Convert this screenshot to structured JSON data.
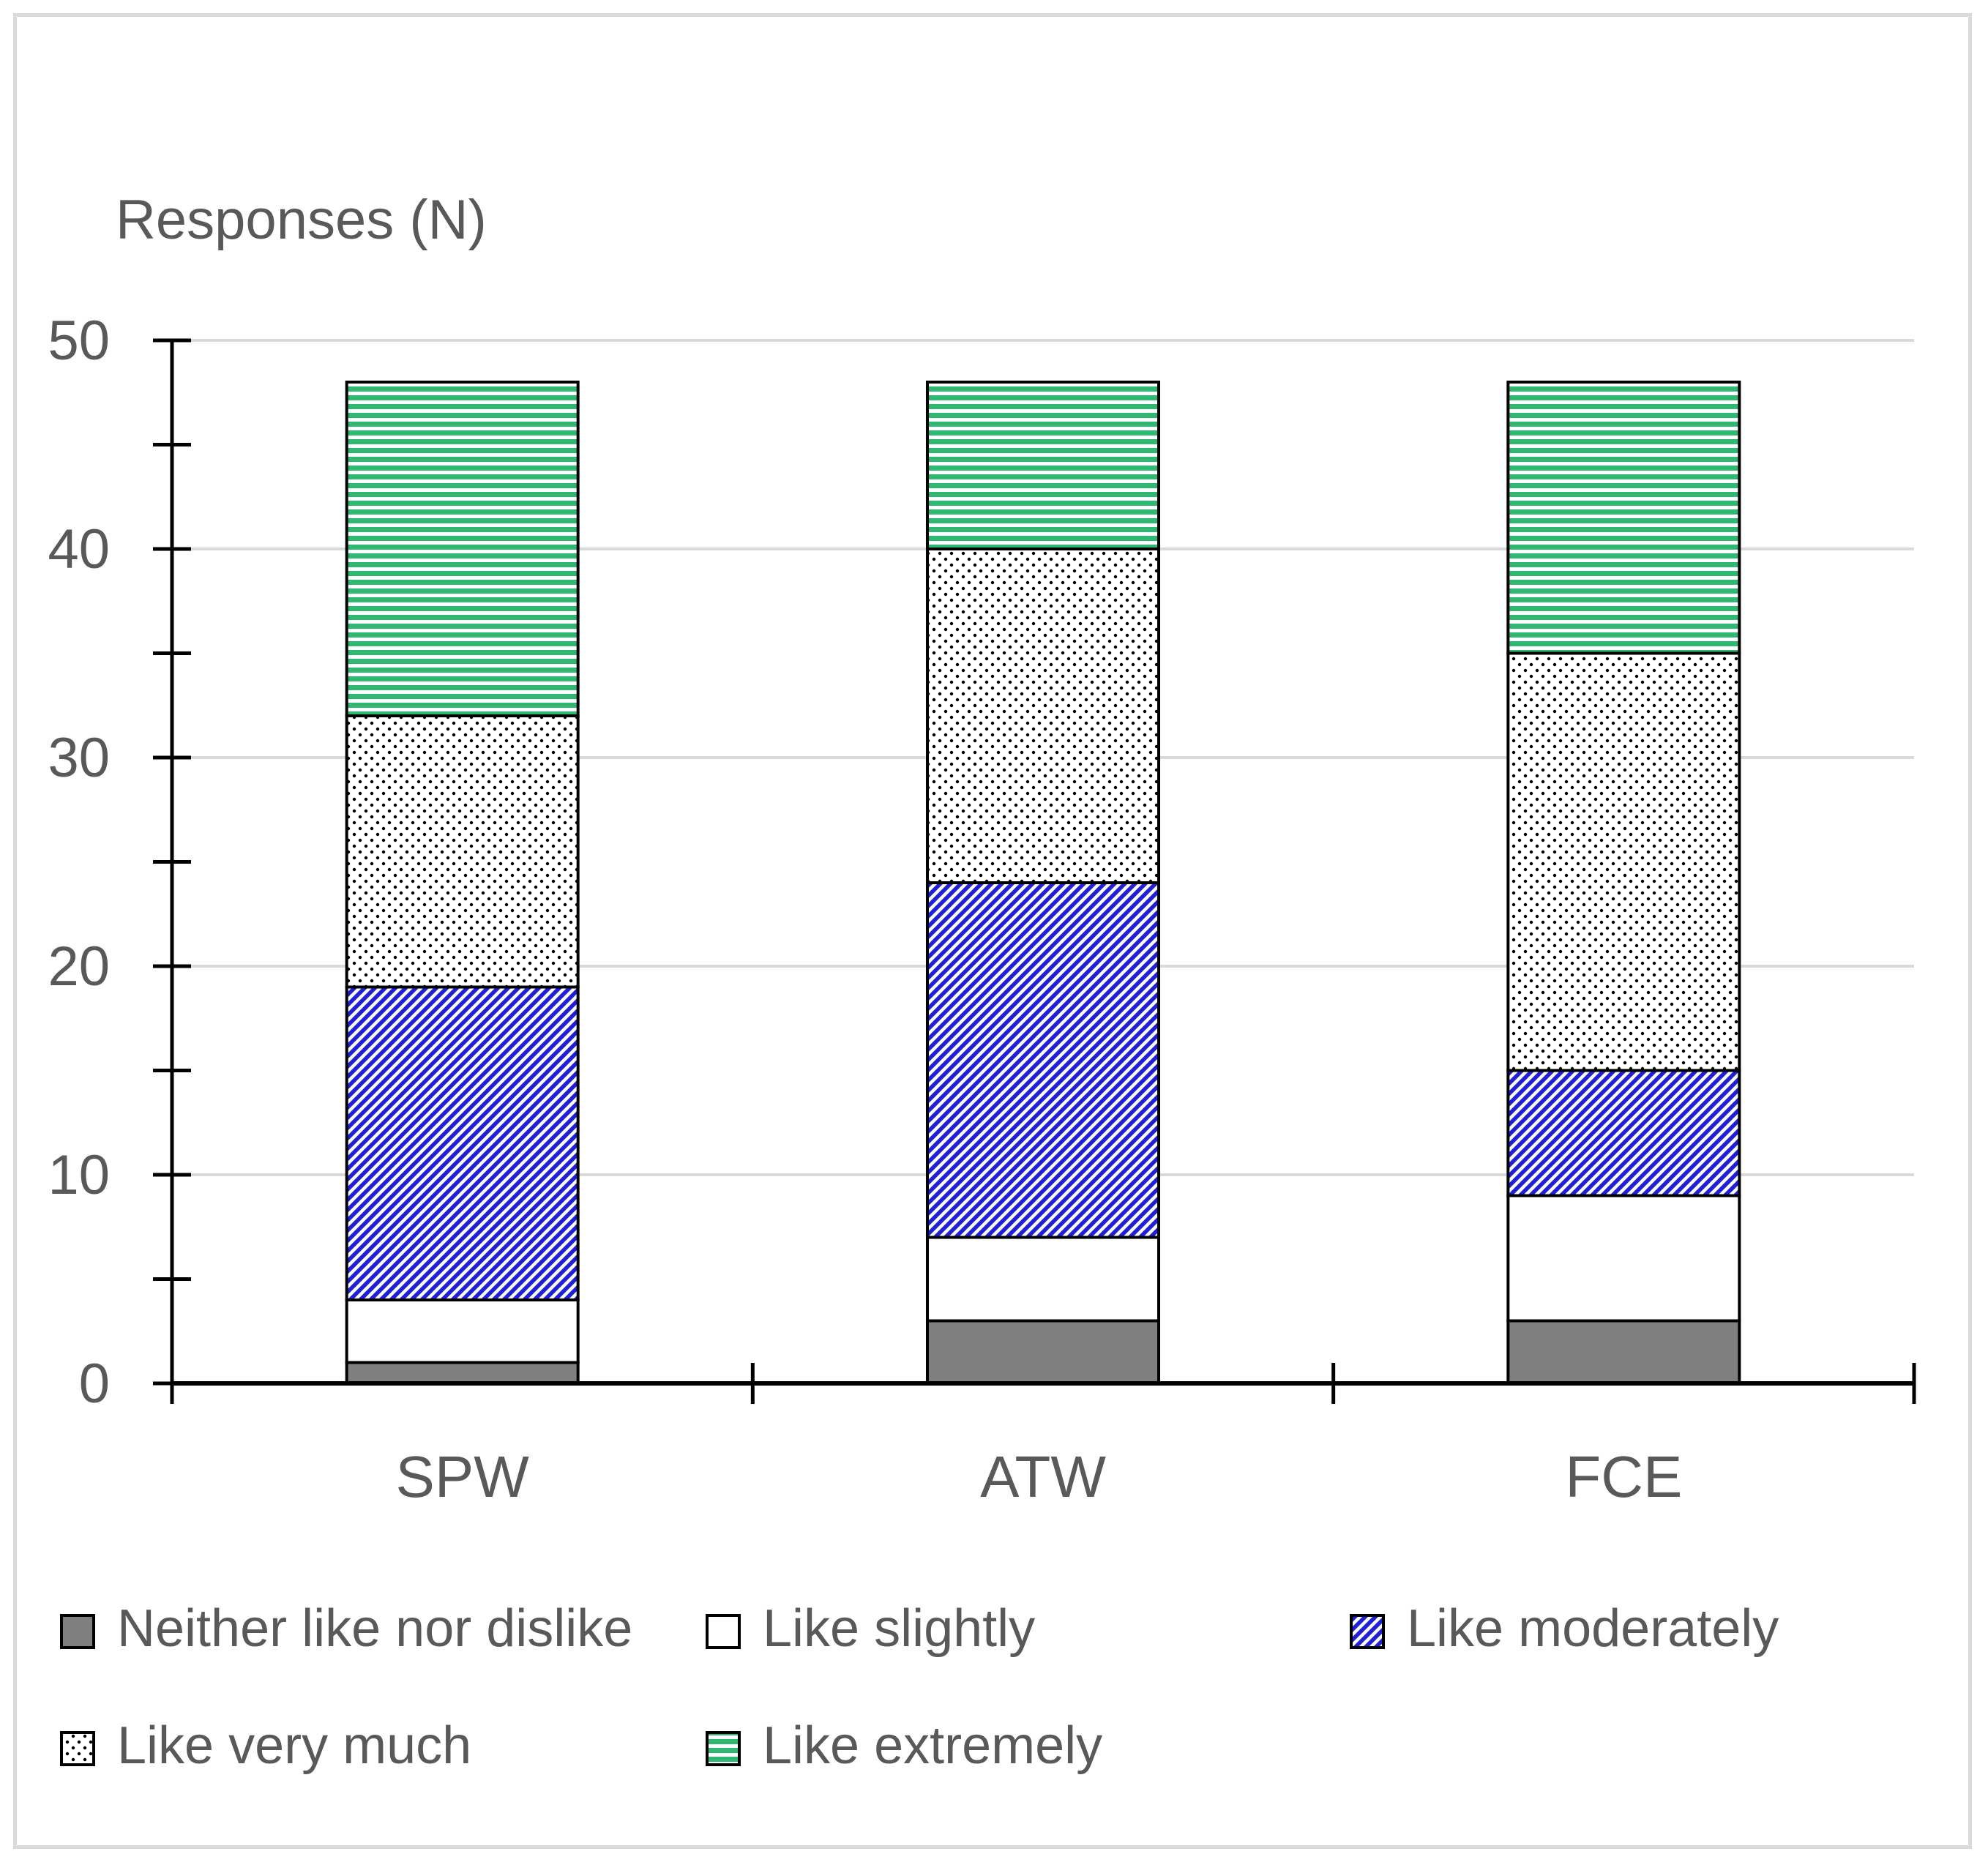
{
  "chart_data": {
    "type": "bar",
    "stacked": true,
    "title": "",
    "xlabel": "",
    "ylabel": "Responses (N)",
    "ylim": [
      0,
      50
    ],
    "yticks": [
      0,
      10,
      20,
      30,
      40,
      50
    ],
    "grid": true,
    "legend_position": "bottom",
    "categories": [
      "SPW",
      "ATW",
      "FCE"
    ],
    "series": [
      {
        "name": "Neither like nor dislike",
        "values": [
          1,
          3,
          3
        ],
        "color": "#7f7f7f",
        "pattern": "solid"
      },
      {
        "name": "Like slightly",
        "values": [
          3,
          4,
          6
        ],
        "color": "#ffffff",
        "pattern": "none"
      },
      {
        "name": "Like moderately",
        "values": [
          15,
          17,
          6
        ],
        "color": "#1f1fd6",
        "pattern": "diagonal"
      },
      {
        "name": "Like very much",
        "values": [
          13,
          16,
          20
        ],
        "color": "#000000",
        "pattern": "dots"
      },
      {
        "name": "Like extremely",
        "values": [
          16,
          8,
          13
        ],
        "color": "#2eb872",
        "pattern": "horizontal"
      }
    ]
  }
}
